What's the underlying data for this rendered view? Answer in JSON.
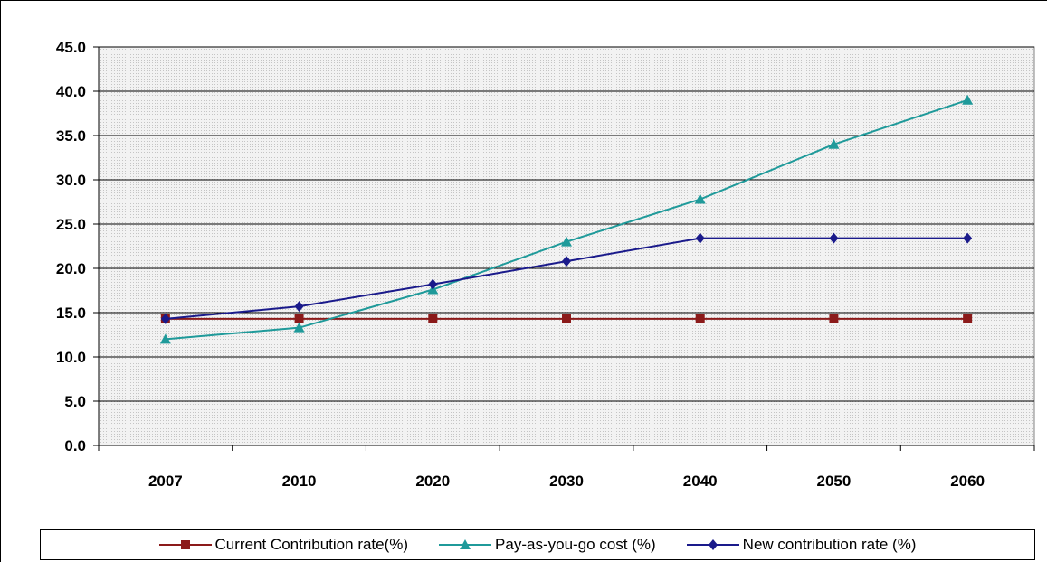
{
  "chart_data": {
    "type": "line",
    "title": "",
    "xlabel": "",
    "ylabel": "",
    "categories": [
      "2007",
      "2010",
      "2020",
      "2030",
      "2040",
      "2050",
      "2060"
    ],
    "ylim": [
      0,
      45
    ],
    "ytick_labels": [
      "0.0",
      "5.0",
      "10.0",
      "15.0",
      "20.0",
      "25.0",
      "30.0",
      "35.0",
      "40.0",
      "45.0"
    ],
    "grid": "horizontal",
    "legend": "bottom",
    "series": [
      {
        "name": "Current Contribution rate(%)",
        "values": [
          14.3,
          14.3,
          14.3,
          14.3,
          14.3,
          14.3,
          14.3
        ],
        "color": "#8B1A1A",
        "marker": "square"
      },
      {
        "name": "Pay-as-you-go cost (%)",
        "values": [
          12.0,
          13.3,
          17.6,
          23.0,
          27.8,
          34.0,
          39.0
        ],
        "color": "#1F9A9A",
        "marker": "triangle"
      },
      {
        "name": "New contribution rate (%)",
        "values": [
          14.3,
          15.7,
          18.2,
          20.8,
          23.4,
          23.4,
          23.4
        ],
        "color": "#1A1A8B",
        "marker": "diamond"
      }
    ]
  }
}
